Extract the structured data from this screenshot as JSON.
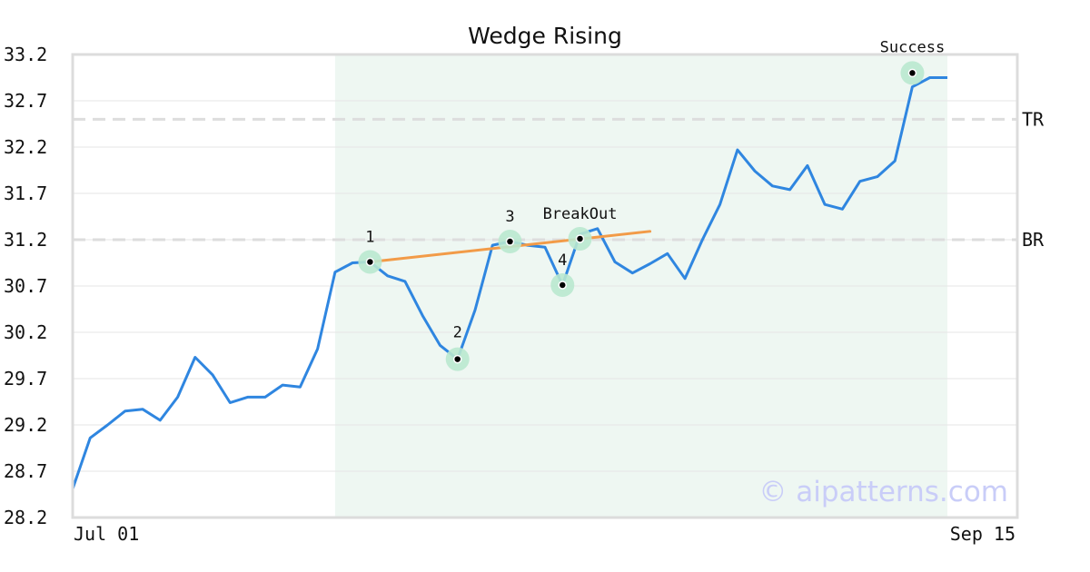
{
  "chart_data": {
    "type": "line",
    "title": "Wedge Rising",
    "xlabel": "",
    "ylabel": "",
    "ylim": [
      28.2,
      33.2
    ],
    "yticks": [
      "33.2",
      "32.7",
      "32.2",
      "31.7",
      "31.2",
      "30.7",
      "30.2",
      "29.7",
      "29.2",
      "28.7",
      "28.2"
    ],
    "xticks": [
      "Jul 01",
      "Sep 15"
    ],
    "grid": true,
    "series": [
      {
        "color": "#2f86e0",
        "values": [
          28.51,
          29.06,
          29.2,
          29.35,
          29.37,
          29.25,
          29.5,
          29.93,
          29.74,
          29.44,
          29.5,
          29.5,
          29.63,
          29.61,
          30.02,
          30.85,
          30.95,
          30.96,
          30.81,
          30.75,
          30.38,
          30.06,
          29.91,
          30.44,
          31.14,
          31.18,
          31.14,
          31.12,
          30.71,
          31.26,
          31.32,
          30.96,
          30.84,
          30.94,
          31.05,
          30.78,
          31.2,
          31.58,
          32.17,
          31.94,
          31.78,
          31.74,
          32.0,
          31.58,
          31.53,
          31.83,
          31.88,
          32.05,
          32.85,
          32.95,
          32.95
        ]
      }
    ],
    "highlight_region": {
      "from_index": 15,
      "to_index": 50,
      "color": "#eef7f2"
    },
    "trendline": {
      "color": "#f29b48",
      "from": {
        "index": 17,
        "y": 30.96
      },
      "to": {
        "index": 33,
        "y": 31.29
      }
    },
    "levels": [
      {
        "label": "TR",
        "y": 32.5
      },
      {
        "label": "BR",
        "y": 31.2
      }
    ],
    "points": [
      {
        "label": "1",
        "index": 17,
        "y": 30.96
      },
      {
        "label": "2",
        "index": 22,
        "y": 29.91
      },
      {
        "label": "3",
        "index": 25,
        "y": 31.18
      },
      {
        "label": "4",
        "index": 28,
        "y": 30.71
      },
      {
        "label": "BreakOut",
        "index": 29,
        "y": 31.21
      },
      {
        "label": "Success",
        "index": 48,
        "y": 33.0
      }
    ],
    "watermark": "© aipatterns.com"
  }
}
